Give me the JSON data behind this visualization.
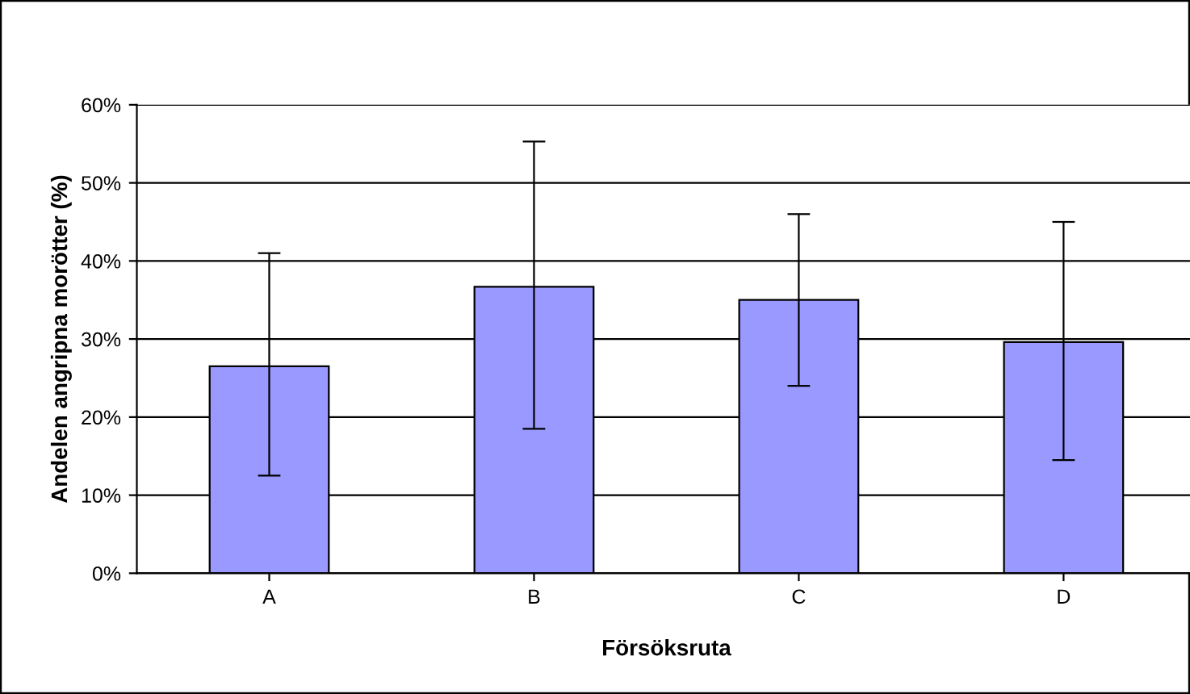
{
  "chart_data": {
    "type": "bar",
    "xlabel": "Försöksruta",
    "ylabel": "Andelen angripna morötter (%)",
    "categories": [
      "A",
      "B",
      "C",
      "D"
    ],
    "values": [
      26.5,
      36.7,
      35,
      29.6
    ],
    "errors": [
      [
        12.5,
        41
      ],
      [
        18.5,
        55.3
      ],
      [
        24,
        46
      ],
      [
        14.5,
        45
      ]
    ],
    "color": "#9999ff",
    "ylim": [
      0,
      60
    ],
    "yticks": [
      {
        "value": 0,
        "label": "0%"
      },
      {
        "value": 10,
        "label": "10%"
      },
      {
        "value": 20,
        "label": "20%"
      },
      {
        "value": 30,
        "label": "30%"
      },
      {
        "value": 40,
        "label": "40%"
      },
      {
        "value": 50,
        "label": "50%"
      },
      {
        "value": 60,
        "label": "60%"
      }
    ],
    "grid": "y",
    "legend": false
  }
}
